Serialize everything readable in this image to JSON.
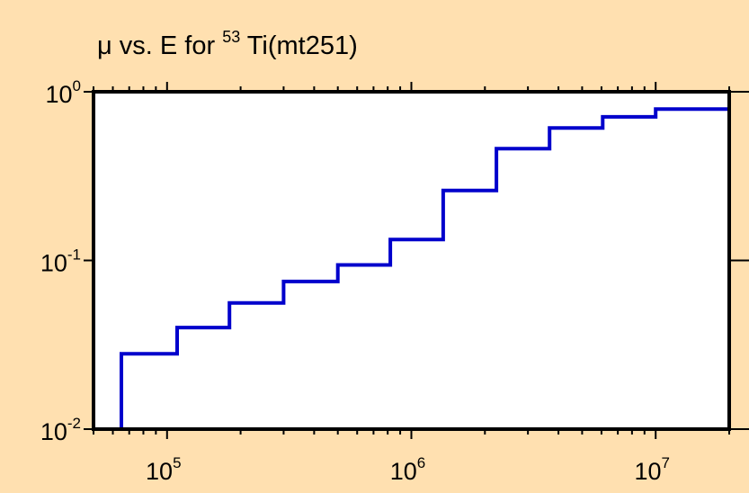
{
  "colors": {
    "background": "#FFE0B0",
    "plot_area": "#FFFFFF",
    "frame": "#000000",
    "series": "#0000CC"
  },
  "chart_data": {
    "type": "line",
    "step": true,
    "title": {
      "prefix": "μ vs. E for ",
      "superscript": "53",
      "suffix": "Ti(mt251)"
    },
    "xlabel": "",
    "ylabel": "",
    "xscale": "log",
    "yscale": "log",
    "xlim": [
      50000,
      20000000
    ],
    "ylim": [
      0.01,
      1
    ],
    "x_ticks": [
      {
        "base": "10",
        "exp": "5",
        "value": 100000
      },
      {
        "base": "10",
        "exp": "6",
        "value": 1000000
      },
      {
        "base": "10",
        "exp": "7",
        "value": 10000000
      }
    ],
    "y_ticks": [
      {
        "base": "10",
        "exp": "0",
        "value": 1
      },
      {
        "base": "10",
        "exp": "-1",
        "value": 0.1
      },
      {
        "base": "10",
        "exp": "-2",
        "value": 0.01
      }
    ],
    "grid": false,
    "legend": "none",
    "series": [
      {
        "x": [
          65000,
          110000,
          180000,
          300000,
          500000,
          820000,
          1350000,
          2230000,
          3680000,
          6070000,
          10000000,
          20000000
        ],
        "y": [
          0.028,
          0.04,
          0.056,
          0.075,
          0.094,
          0.133,
          0.26,
          0.46,
          0.61,
          0.71,
          0.79,
          0.79
        ]
      }
    ]
  }
}
